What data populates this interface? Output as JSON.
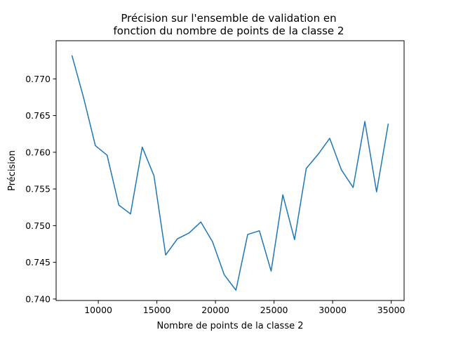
{
  "chart_data": {
    "type": "line",
    "title_lines": [
      "Précision sur l'ensemble de validation en",
      "fonction du nombre de points de la classe 2"
    ],
    "xlabel": "Nombre de points de la classe 2",
    "ylabel": "Précision",
    "xlim": [
      6400,
      36100
    ],
    "ylim": [
      0.7398,
      0.7752
    ],
    "x_ticks": [
      10000,
      15000,
      20000,
      25000,
      30000,
      35000
    ],
    "y_ticks": [
      0.74,
      0.745,
      0.75,
      0.755,
      0.76,
      0.765,
      0.77
    ],
    "x_tick_labels": [
      "10000",
      "15000",
      "20000",
      "25000",
      "30000",
      "35000"
    ],
    "y_tick_labels": [
      "0.740",
      "0.745",
      "0.750",
      "0.755",
      "0.760",
      "0.765",
      "0.770"
    ],
    "grid": false,
    "series": [
      {
        "color": "#1f77b4",
        "x": [
          7750,
          8750,
          9750,
          10750,
          11750,
          12750,
          13750,
          14750,
          15750,
          16750,
          17750,
          18750,
          19750,
          20750,
          21750,
          22750,
          23750,
          24750,
          25750,
          26750,
          27750,
          28750,
          29750,
          30750,
          31750,
          32750,
          33750,
          34750
        ],
        "y": [
          0.7732,
          0.7674,
          0.7609,
          0.7596,
          0.7528,
          0.7516,
          0.7607,
          0.7568,
          0.746,
          0.7482,
          0.749,
          0.7505,
          0.7478,
          0.7433,
          0.7412,
          0.7488,
          0.7493,
          0.7438,
          0.7542,
          0.7481,
          0.7578,
          0.7597,
          0.7619,
          0.7576,
          0.7552,
          0.7642,
          0.7546,
          0.7639
        ]
      }
    ]
  }
}
